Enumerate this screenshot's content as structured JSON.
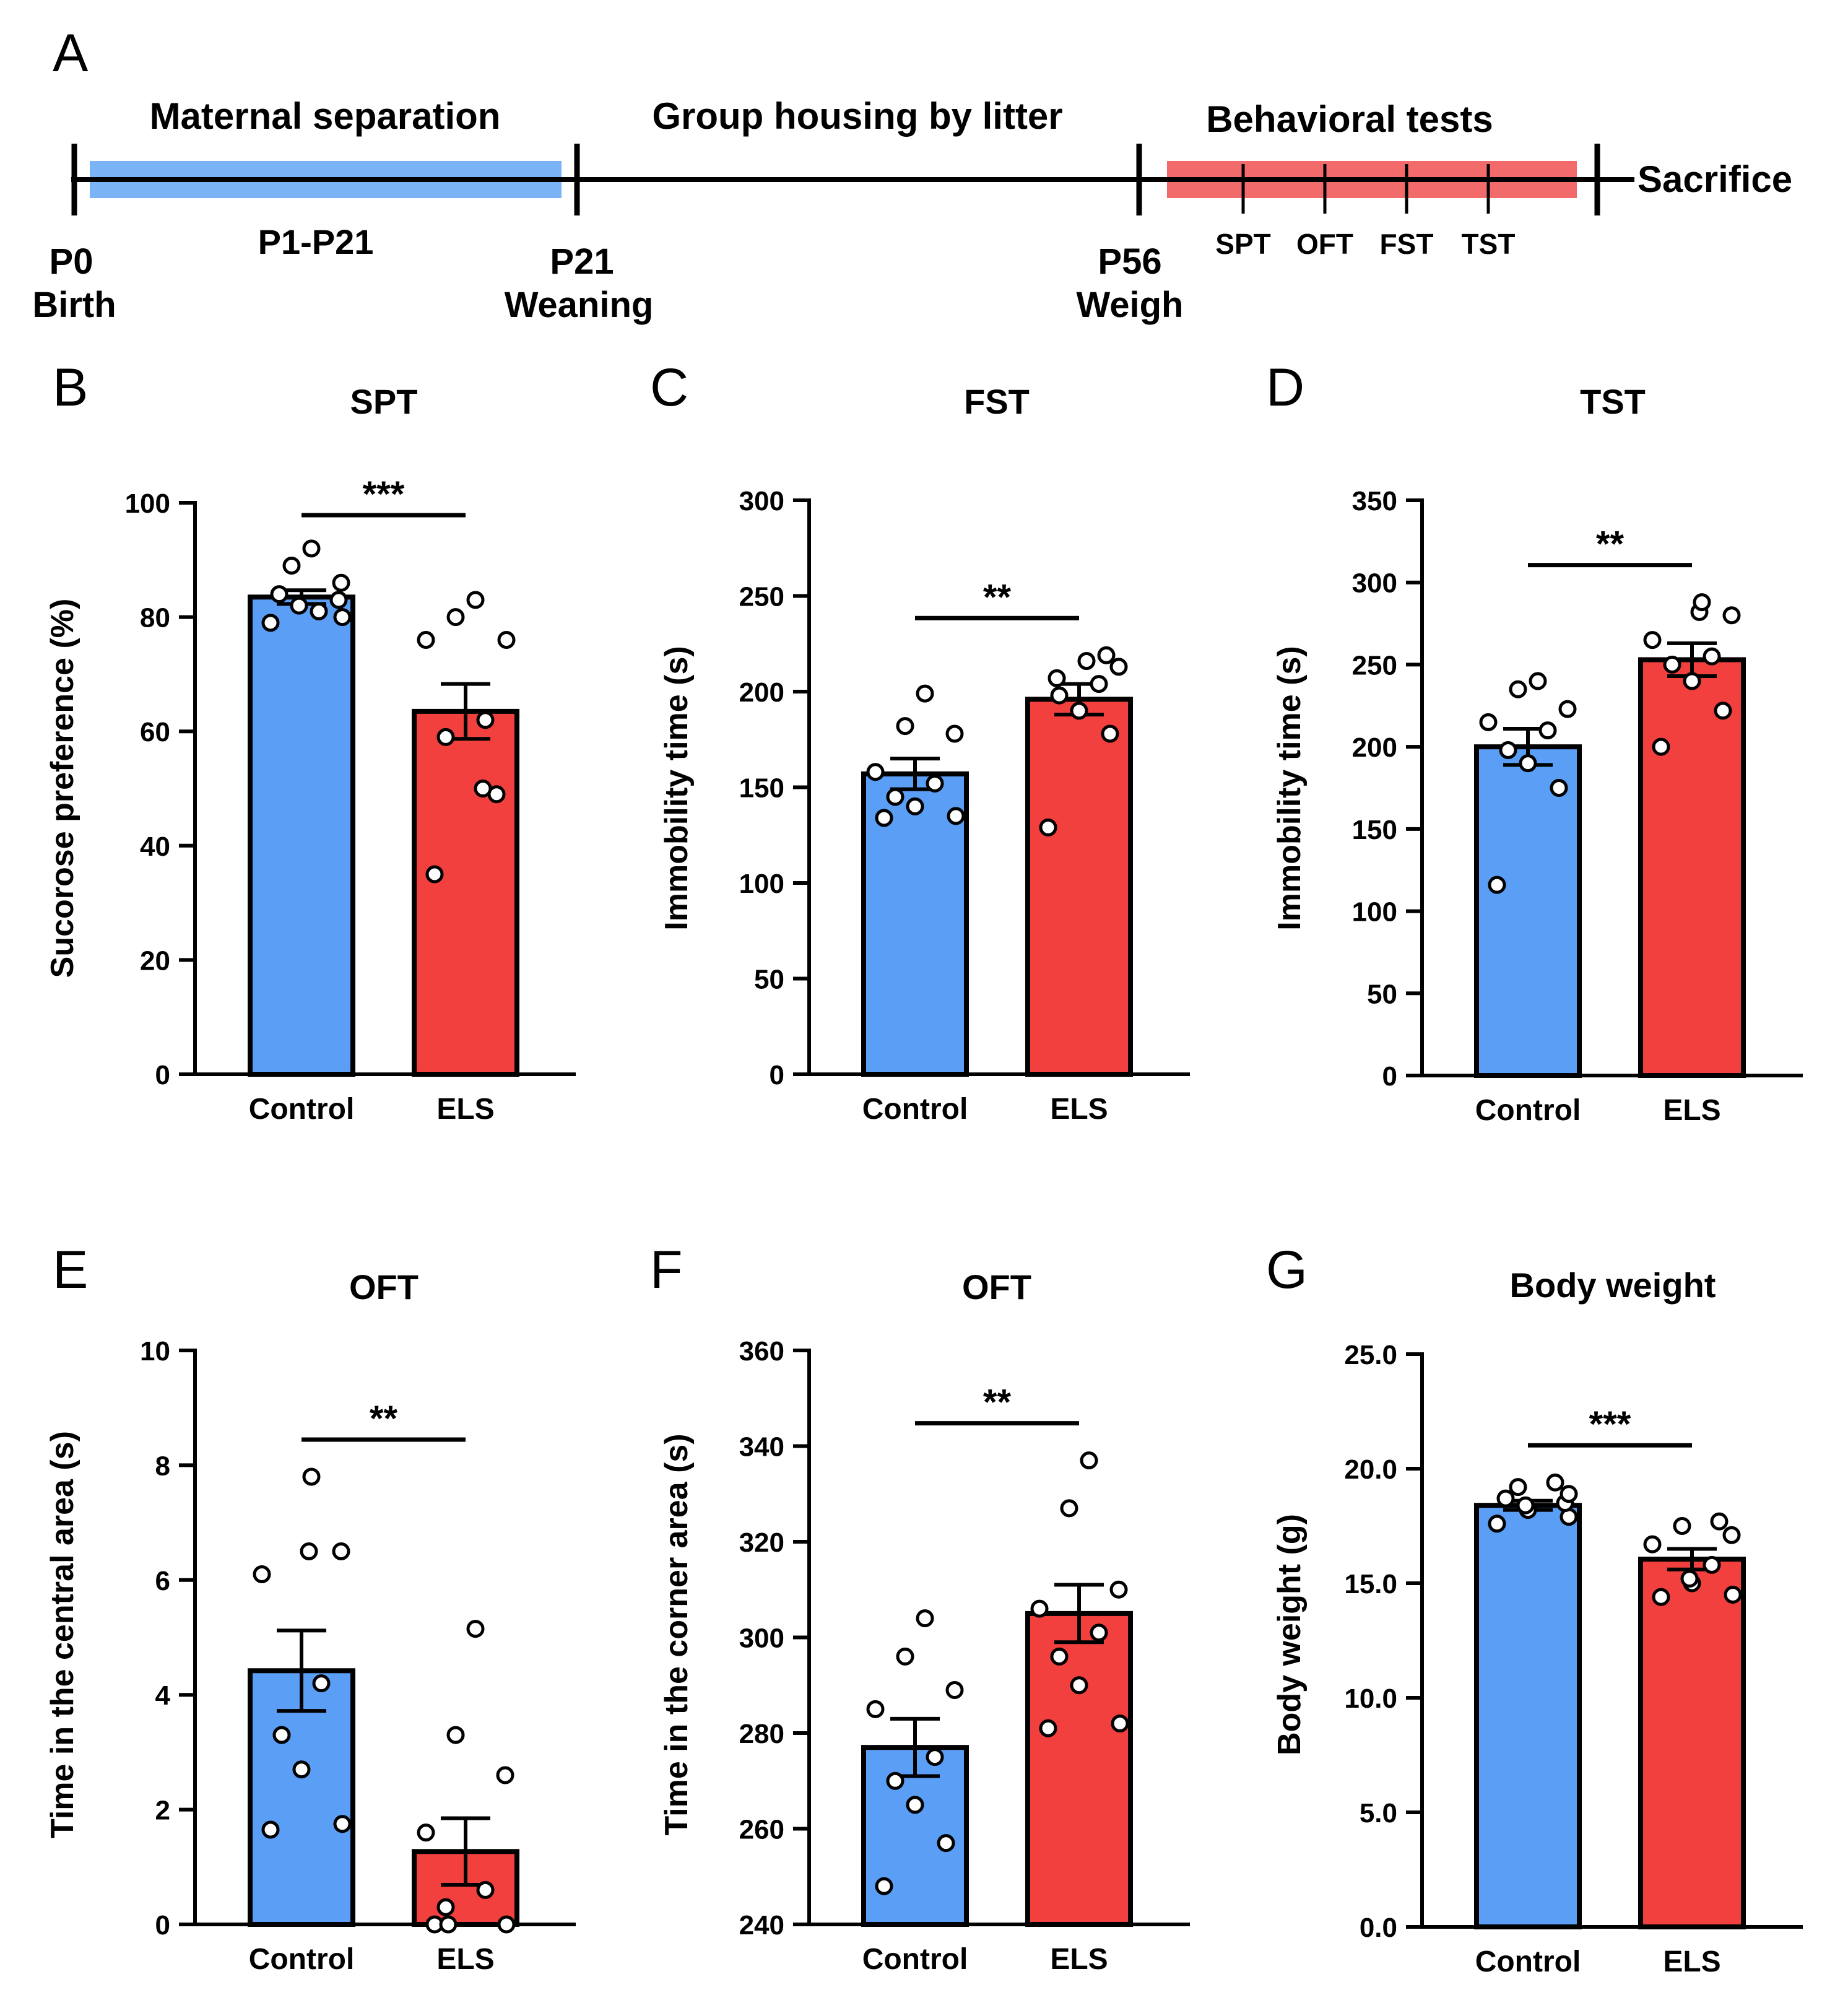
{
  "timeline": {
    "panel_label": "A",
    "phase_labels": {
      "maternal": "Maternal separation",
      "group_housing": "Group housing by litter",
      "behavioral": "Behavioral tests",
      "sacrifice": "Sacrifice",
      "separation_period": "P1-P21"
    },
    "milestones": [
      {
        "day": "P0",
        "event": "Birth"
      },
      {
        "day": "P21",
        "event": "Weaning"
      },
      {
        "day": "P56",
        "event": "Weigh"
      }
    ],
    "tests": [
      "SPT",
      "OFT",
      "FST",
      "TST"
    ],
    "colors": {
      "separation_bar": "#7bb4f6",
      "tests_bar": "#f26a6a"
    }
  },
  "chart_data": [
    {
      "panel": "B",
      "type": "bar",
      "title": "SPT",
      "ylabel": "Sucorose preference (%)",
      "categories": [
        "Control",
        "ELS"
      ],
      "values": [
        83.5,
        63.5
      ],
      "sem": [
        1.2,
        4.8
      ],
      "ylim": [
        0,
        100
      ],
      "ticks": [
        "0",
        "20",
        "40",
        "60",
        "80",
        "100"
      ],
      "points": [
        [
          79,
          81,
          82,
          80,
          84,
          83,
          86,
          89,
          92
        ],
        [
          35,
          49,
          50,
          59,
          62,
          76,
          76,
          80,
          83
        ]
      ],
      "significance": "***"
    },
    {
      "panel": "C",
      "type": "bar",
      "title": "FST",
      "ylabel": "Immobility time (s)",
      "categories": [
        "Control",
        "ELS"
      ],
      "values": [
        157,
        196
      ],
      "sem": [
        8,
        8
      ],
      "ylim": [
        0,
        300
      ],
      "ticks": [
        "0",
        "50",
        "100",
        "150",
        "200",
        "250",
        "300"
      ],
      "points": [
        [
          134,
          135,
          140,
          145,
          152,
          158,
          178,
          182,
          199
        ],
        [
          129,
          178,
          190,
          198,
          204,
          207,
          213,
          216,
          219
        ]
      ],
      "significance": "**"
    },
    {
      "panel": "D",
      "type": "bar",
      "title": "TST",
      "ylabel": "Immobility time (s)",
      "categories": [
        "Control",
        "ELS"
      ],
      "values": [
        200,
        253
      ],
      "sem": [
        11,
        10
      ],
      "ylim": [
        0,
        350
      ],
      "ticks": [
        "0",
        "50",
        "100",
        "150",
        "200",
        "250",
        "300",
        "350"
      ],
      "points": [
        [
          116,
          175,
          190,
          198,
          210,
          215,
          223,
          235,
          240
        ],
        [
          200,
          222,
          240,
          250,
          255,
          265,
          280,
          282,
          288
        ]
      ],
      "significance": "**"
    },
    {
      "panel": "E",
      "type": "bar",
      "title": "OFT",
      "ylabel": "Time in the central area (s)",
      "categories": [
        "Control",
        "ELS"
      ],
      "values": [
        4.42,
        1.27
      ],
      "sem": [
        0.7,
        0.58
      ],
      "ylim": [
        0,
        10
      ],
      "ticks": [
        "0",
        "2",
        "4",
        "6",
        "8",
        "10"
      ],
      "points": [
        [
          1.65,
          1.75,
          2.7,
          3.3,
          4.2,
          6.1,
          6.5,
          6.5,
          7.8
        ],
        [
          0,
          0,
          0,
          0.3,
          0.6,
          1.6,
          2.6,
          3.3,
          5.15
        ]
      ],
      "significance": "**"
    },
    {
      "panel": "F",
      "type": "bar",
      "title": "OFT",
      "ylabel": "Time in the corner area (s)",
      "categories": [
        "Control",
        "ELS"
      ],
      "values": [
        277,
        305
      ],
      "sem": [
        6,
        6
      ],
      "ylim": [
        240,
        360
      ],
      "ticks": [
        "240",
        "260",
        "280",
        "300",
        "320",
        "340",
        "360"
      ],
      "points": [
        [
          248,
          257,
          265,
          270,
          275,
          285,
          289,
          296,
          304
        ],
        [
          281,
          282,
          290,
          296,
          301,
          306,
          310,
          327,
          337
        ]
      ],
      "significance": "**"
    },
    {
      "panel": "G",
      "type": "bar",
      "title": "Body weight",
      "ylabel": "Body weight (g)",
      "categories": [
        "Control",
        "ELS"
      ],
      "values": [
        18.4,
        16.05
      ],
      "sem": [
        0.2,
        0.45
      ],
      "ylim": [
        0,
        25
      ],
      "ticks": [
        "0.0",
        "5.0",
        "10.0",
        "15.0",
        "20.0",
        "25.0"
      ],
      "points": [
        [
          17.6,
          17.9,
          18.2,
          18.4,
          18.5,
          18.7,
          18.9,
          19.2,
          19.4
        ],
        [
          14.4,
          14.5,
          15.0,
          15.2,
          15.8,
          16.7,
          17.1,
          17.5,
          17.7
        ]
      ],
      "significance": "***"
    }
  ],
  "colors": {
    "control": "#5b9ef5",
    "els": "#f2403f"
  }
}
